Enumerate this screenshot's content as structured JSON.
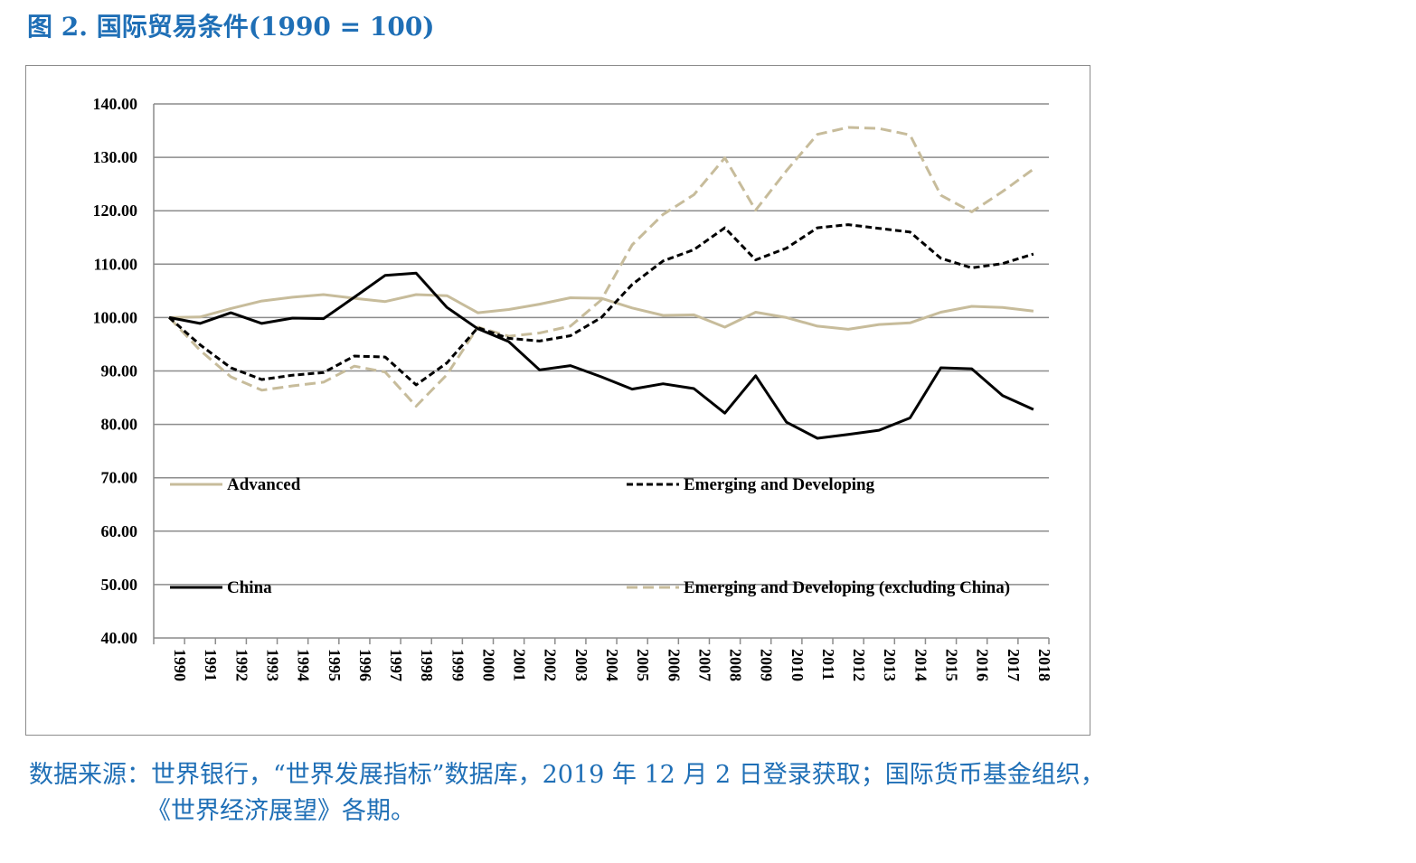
{
  "figure": {
    "title": "图 2. 国际贸易条件(1990 = 100)",
    "source_line1": "数据来源：世界银行，“世界发展指标”数据库，2019 年 12 月 2 日登录获取；国际货币基金组织，",
    "source_line2": "《世界经济展望》各期。"
  },
  "chart_data": {
    "type": "line",
    "title": "",
    "xlabel": "",
    "ylabel": "",
    "ylim": [
      40,
      140
    ],
    "yticks": [
      "40.00",
      "50.00",
      "60.00",
      "70.00",
      "80.00",
      "90.00",
      "100.00",
      "110.00",
      "120.00",
      "130.00",
      "140.00"
    ],
    "grid": true,
    "categories": [
      "1990",
      "1991",
      "1992",
      "1993",
      "1994",
      "1995",
      "1996",
      "1997",
      "1998",
      "1999",
      "2000",
      "2001",
      "2002",
      "2003",
      "2004",
      "2005",
      "2006",
      "2007",
      "2008",
      "2009",
      "2010",
      "2011",
      "2012",
      "2013",
      "2014",
      "2015",
      "2016",
      "2017",
      "2018"
    ],
    "series": [
      {
        "name": "Advanced",
        "color": "#c7bc9b",
        "dash": "solid",
        "values": [
          100.0,
          100.1,
          101.7,
          103.1,
          103.8,
          104.3,
          103.6,
          103.0,
          104.3,
          104.1,
          100.9,
          101.5,
          102.5,
          103.7,
          103.6,
          101.8,
          100.4,
          100.5,
          98.2,
          101.0,
          100.0,
          98.4,
          97.8,
          98.7,
          99.0,
          101.0,
          102.1,
          101.9,
          101.2
        ]
      },
      {
        "name": "Emerging and Developing",
        "color": "#000000",
        "dash": "dashed",
        "values": [
          100.0,
          94.9,
          90.6,
          88.4,
          89.2,
          89.7,
          92.8,
          92.6,
          87.4,
          91.5,
          98.1,
          96.1,
          95.6,
          96.6,
          100.0,
          106.2,
          110.6,
          112.7,
          116.8,
          110.8,
          113.0,
          116.8,
          117.4,
          116.7,
          116.0,
          111.1,
          109.3,
          110.1,
          111.9
        ]
      },
      {
        "name": "China",
        "color": "#000000",
        "dash": "solid",
        "values": [
          100.0,
          98.9,
          100.9,
          98.9,
          99.9,
          99.8,
          103.8,
          107.9,
          108.3,
          101.9,
          97.9,
          95.5,
          90.2,
          91.0,
          88.9,
          86.6,
          87.6,
          86.7,
          82.1,
          89.1,
          80.4,
          77.4,
          78.1,
          78.9,
          81.2,
          90.6,
          90.4,
          85.4,
          82.8
        ]
      },
      {
        "name": "Emerging and Developing (excluding China)",
        "color": "#c7bc9b",
        "dash": "dashed",
        "values": [
          100.0,
          93.9,
          88.9,
          86.4,
          87.2,
          87.9,
          90.9,
          89.8,
          83.4,
          89.3,
          98.2,
          96.5,
          97.1,
          98.4,
          103.3,
          113.6,
          119.3,
          123.0,
          129.9,
          120.1,
          127.5,
          134.3,
          135.6,
          135.4,
          134.2,
          122.9,
          119.8,
          123.6,
          127.8
        ]
      }
    ],
    "legend_placement": "inside-plot"
  }
}
